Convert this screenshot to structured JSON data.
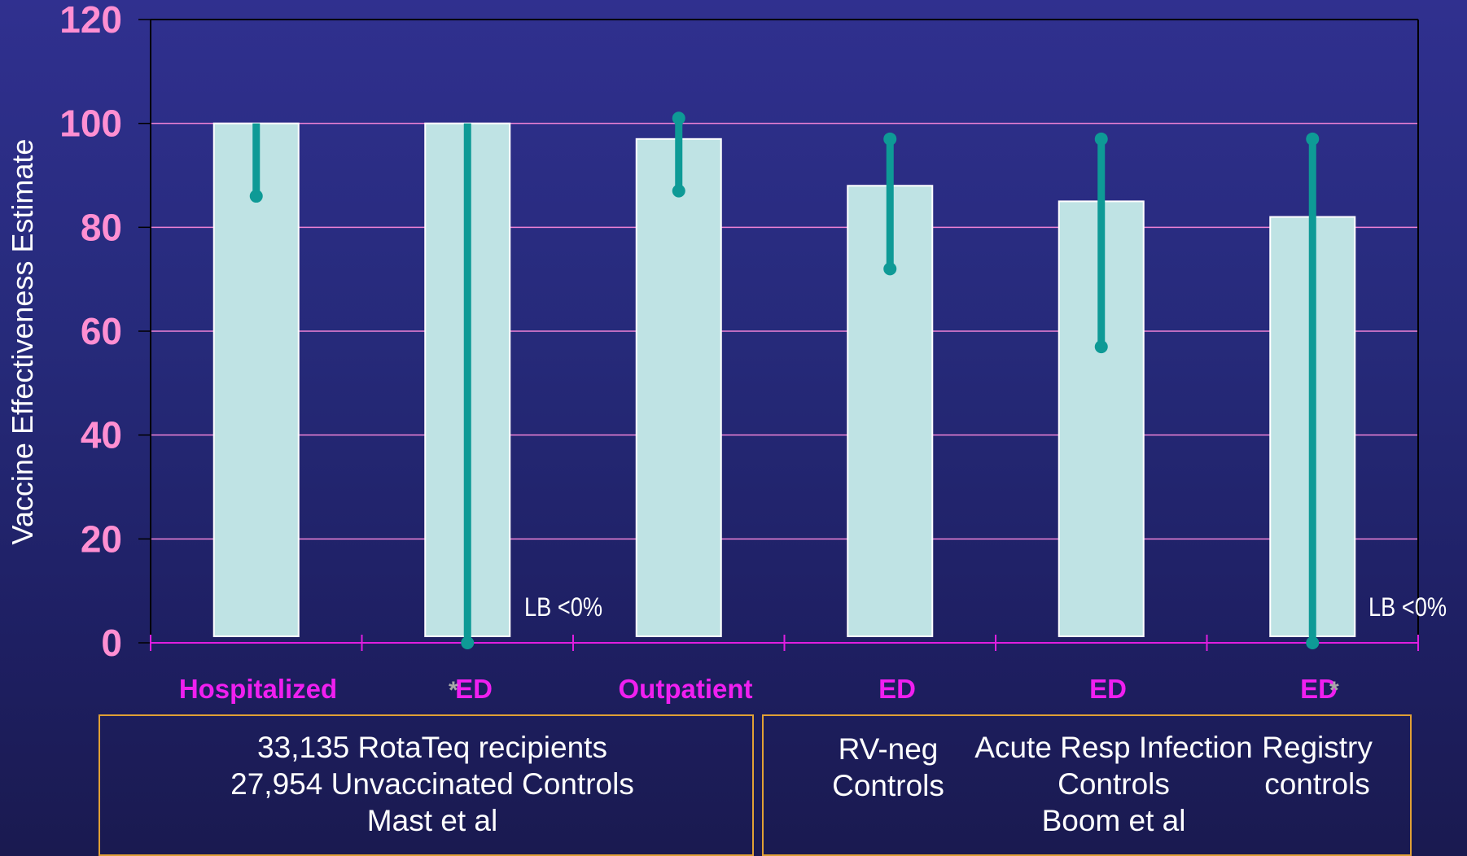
{
  "chart_data": {
    "type": "bar",
    "ylabel": "Vaccine Effectiveness Estimate",
    "ylim": [
      0,
      120
    ],
    "yticks": [
      "0",
      "20",
      "40",
      "60",
      "80",
      "100",
      "120"
    ],
    "grid": true,
    "categories": [
      "Hospitalized",
      "ED",
      "Outpatient",
      "ED",
      "ED",
      "ED"
    ],
    "values": [
      100,
      100,
      97,
      88,
      85,
      82
    ],
    "ci_low": [
      86,
      0,
      87,
      72,
      57,
      0
    ],
    "ci_high": [
      100,
      100,
      101,
      97,
      97,
      97
    ],
    "annotations": [
      "LB <0%",
      "LB <0%"
    ],
    "asterisk": "*",
    "colors": {
      "bar": "#bfe3e4",
      "bar_border": "#ffffff",
      "error": "#0e9a96",
      "grid": "#ee82d6",
      "tick_labels": "#ff8fd2",
      "category_labels": "#f01ff0",
      "box_border": "#e0a035"
    }
  },
  "groups": {
    "mast": {
      "line1": "33,135 RotaTeq recipients",
      "line2": "27,954 Unvaccinated Controls",
      "line3": "Mast et al"
    },
    "boom": {
      "rvneg_1": "RV-neg",
      "rvneg_2": "Controls",
      "ari_1": "Acute Resp Infection",
      "ari_2": "Controls",
      "registry_1": "Registry",
      "registry_2": "controls",
      "author": "Boom et al"
    }
  }
}
